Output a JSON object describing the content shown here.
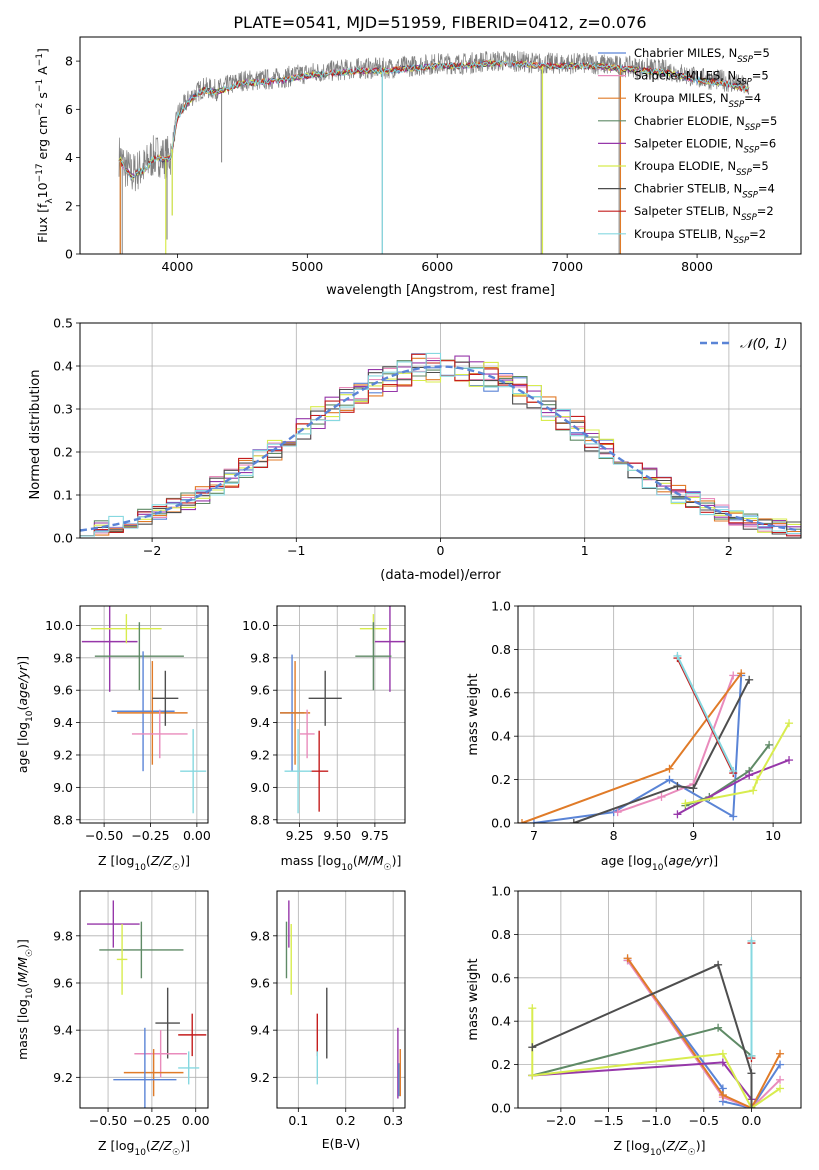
{
  "figure_title": "PLATE=0541, MJD=51959, FIBERID=0412, z=0.076",
  "colors": {
    "Chabrier MILES": "#5a84d6",
    "Salpeter MILES": "#e98bbc",
    "Kroupa MILES": "#e07b28",
    "Chabrier ELODIE": "#5f8a66",
    "Salpeter ELODIE": "#9637a9",
    "Kroupa ELODIE": "#d8ec4e",
    "Chabrier STELIB": "#4e4e4e",
    "Salpeter STELIB": "#c41e1e",
    "Kroupa STELIB": "#86d8e0"
  },
  "chart_data": [
    {
      "id": "spectrum",
      "type": "line",
      "title": "PLATE=0541, MJD=51959, FIBERID=0412, z=0.076",
      "xlabel": "wavelength [Angstrom, rest frame]",
      "ylabel": "Flux [fλ10⁻¹⁷ erg cm⁻² s⁻¹ A⁻¹]",
      "xlim": [
        3250,
        8800
      ],
      "ylim": [
        0,
        9
      ],
      "xticks": [
        4000,
        5000,
        6000,
        7000,
        8000
      ],
      "yticks": [
        0,
        2,
        4,
        6,
        8
      ],
      "grid": false,
      "legend_position": "right",
      "legend": [
        "Chabrier MILES, N_SSP=5",
        "Salpeter MILES, N_SSP=5",
        "Kroupa MILES, N_SSP=4",
        "Chabrier ELODIE, N_SSP=5",
        "Salpeter ELODIE, N_SSP=6",
        "Kroupa ELODIE, N_SSP=5",
        "Chabrier STELIB, N_SSP=4",
        "Salpeter STELIB, N_SSP=2",
        "Kroupa STELIB, N_SSP=2"
      ],
      "legend_display": [
        {
          "pre": "Chabrier MILES, N",
          "sub": "SSP",
          "post": "=5",
          "model": "Chabrier MILES"
        },
        {
          "pre": "Salpeter MILES, N",
          "sub": "SSP",
          "post": "=5",
          "model": "Salpeter MILES"
        },
        {
          "pre": "Kroupa MILES, N",
          "sub": "SSP",
          "post": "=4",
          "model": "Kroupa MILES"
        },
        {
          "pre": "Chabrier ELODIE, N",
          "sub": "SSP",
          "post": "=5",
          "model": "Chabrier ELODIE"
        },
        {
          "pre": "Salpeter ELODIE, N",
          "sub": "SSP",
          "post": "=6",
          "model": "Salpeter ELODIE"
        },
        {
          "pre": "Kroupa ELODIE, N",
          "sub": "SSP",
          "post": "=5",
          "model": "Kroupa ELODIE"
        },
        {
          "pre": "Chabrier STELIB, N",
          "sub": "SSP",
          "post": "=4",
          "model": "Chabrier STELIB"
        },
        {
          "pre": "Salpeter STELIB, N",
          "sub": "SSP",
          "post": "=2",
          "model": "Salpeter STELIB"
        },
        {
          "pre": "Kroupa STELIB, N",
          "sub": "SSP",
          "post": "=2",
          "model": "Kroupa STELIB"
        }
      ],
      "series": [
        {
          "name": "Observed spectrum",
          "color": "#808080",
          "x": [
            3550,
            3600,
            3650,
            3700,
            3750,
            3800,
            3850,
            3900,
            3950,
            4000,
            4100,
            4200,
            4300,
            4400,
            4500,
            4600,
            4800,
            5000,
            5200,
            5400,
            5600,
            5800,
            6000,
            6200,
            6400,
            6600,
            6800,
            7000,
            7200,
            7400,
            7600,
            7800,
            8000,
            8200,
            8400
          ],
          "y": [
            4.1,
            3.6,
            3.3,
            3.5,
            3.6,
            4.0,
            4.1,
            4.0,
            4.1,
            5.8,
            6.5,
            6.9,
            6.8,
            7.0,
            7.2,
            7.2,
            7.3,
            7.5,
            7.6,
            7.7,
            7.7,
            7.8,
            7.9,
            7.9,
            8.0,
            8.0,
            7.9,
            7.9,
            7.9,
            7.8,
            7.7,
            7.6,
            7.3,
            7.2,
            6.9
          ]
        },
        {
          "name": "Model fits",
          "color": "#86d8e0",
          "x": [
            3550,
            3600,
            3650,
            3700,
            3750,
            3800,
            3850,
            3900,
            3950,
            4000,
            4100,
            4200,
            4300,
            4400,
            4500,
            4600,
            4800,
            5000,
            5200,
            5400,
            5600,
            5800,
            6000,
            6200,
            6400,
            6600,
            6800,
            7000,
            7200,
            7400,
            7600,
            7800,
            8000,
            8200,
            8400
          ],
          "y": [
            4.0,
            3.5,
            3.2,
            3.4,
            3.5,
            3.9,
            4.0,
            3.9,
            4.0,
            5.7,
            6.4,
            6.8,
            6.7,
            6.9,
            7.1,
            7.1,
            7.2,
            7.4,
            7.5,
            7.6,
            7.6,
            7.7,
            7.8,
            7.8,
            7.9,
            7.9,
            7.8,
            7.8,
            7.8,
            7.7,
            7.6,
            7.5,
            7.2,
            7.1,
            6.8
          ]
        }
      ]
    },
    {
      "id": "residuals",
      "type": "histogram",
      "xlabel": "(data-model)/error",
      "ylabel": "Normed distribution",
      "xlim": [
        -2.5,
        2.5
      ],
      "ylim": [
        0,
        0.5
      ],
      "xticks": [
        -2,
        -1,
        0,
        1,
        2
      ],
      "yticks": [
        0.0,
        0.1,
        0.2,
        0.3,
        0.4,
        0.5
      ],
      "grid": true,
      "legend_position": "top-right",
      "legend": [
        "𝒩(0, 1)"
      ],
      "reference_curve": {
        "name": "𝒩(0, 1)",
        "mean": 0,
        "sigma": 1,
        "style": "dashed",
        "color": "#5a84d6"
      },
      "bin_width": 0.1,
      "bin_start": -2.5
    },
    {
      "id": "age-vs-Z",
      "type": "scatter",
      "xlabel": "Z [log10(Z/Z☉)]",
      "ylabel": "age [log10(age/yr)]",
      "xlim": [
        -0.63,
        0.06
      ],
      "ylim": [
        8.78,
        10.12
      ],
      "xticks": [
        -0.5,
        -0.25,
        0.0
      ],
      "yticks": [
        8.8,
        9.0,
        9.2,
        9.4,
        9.6,
        9.8,
        10.0
      ],
      "grid": true,
      "points": [
        {
          "model": "Salpeter ELODIE",
          "x": -0.47,
          "xerr": 0.15,
          "y": 9.9,
          "yerr": 0.31
        },
        {
          "model": "Kroupa ELODIE",
          "x": -0.38,
          "xerr": 0.19,
          "y": 9.98,
          "yerr": 0.09
        },
        {
          "model": "Chabrier ELODIE",
          "x": -0.31,
          "xerr": 0.24,
          "y": 9.81,
          "yerr": 0.21
        },
        {
          "model": "Chabrier MILES",
          "x": -0.29,
          "xerr": 0.17,
          "y": 9.47,
          "yerr": 0.37
        },
        {
          "model": "Kroupa MILES",
          "x": -0.24,
          "xerr": 0.19,
          "y": 9.46,
          "yerr": 0.32
        },
        {
          "model": "Chabrier STELIB",
          "x": -0.17,
          "xerr": 0.07,
          "y": 9.55,
          "yerr": 0.17
        },
        {
          "model": "Salpeter MILES",
          "x": -0.2,
          "xerr": 0.15,
          "y": 9.33,
          "yerr": 0.15
        },
        {
          "model": "Kroupa STELIB",
          "x": -0.02,
          "xerr": 0.07,
          "y": 9.1,
          "yerr": 0.26
        }
      ]
    },
    {
      "id": "age-vs-mass",
      "type": "scatter",
      "xlabel": "mass [log10(M/M☉)]",
      "ylabel": "",
      "xlim": [
        9.1,
        9.95
      ],
      "ylim": [
        8.78,
        10.12
      ],
      "xticks": [
        9.25,
        9.5,
        9.75
      ],
      "yticks": [
        8.8,
        9.0,
        9.2,
        9.4,
        9.6,
        9.8,
        10.0
      ],
      "grid": true,
      "points": [
        {
          "model": "Kroupa ELODIE",
          "x": 9.74,
          "xerr": 0.09,
          "y": 9.98,
          "yerr": 0.09
        },
        {
          "model": "Salpeter ELODIE",
          "x": 9.85,
          "xerr": 0.1,
          "y": 9.9,
          "yerr": 0.31
        },
        {
          "model": "Chabrier ELODIE",
          "x": 9.74,
          "xerr": 0.12,
          "y": 9.81,
          "yerr": 0.21
        },
        {
          "model": "Chabrier STELIB",
          "x": 9.42,
          "xerr": 0.11,
          "y": 9.55,
          "yerr": 0.17
        },
        {
          "model": "Chabrier MILES",
          "x": 9.2,
          "xerr": 0.08,
          "y": 9.46,
          "yerr": 0.36
        },
        {
          "model": "Kroupa MILES",
          "x": 9.22,
          "xerr": 0.1,
          "y": 9.46,
          "yerr": 0.32
        },
        {
          "model": "Salpeter MILES",
          "x": 9.3,
          "xerr": 0.05,
          "y": 9.33,
          "yerr": 0.15
        },
        {
          "model": "Salpeter STELIB",
          "x": 9.38,
          "xerr": 0.06,
          "y": 9.1,
          "yerr": 0.25
        },
        {
          "model": "Kroupa STELIB",
          "x": 9.24,
          "xerr": 0.09,
          "y": 9.1,
          "yerr": 0.26
        }
      ]
    },
    {
      "id": "weight-vs-age",
      "type": "line",
      "xlabel": "age [log10(age/yr)]",
      "ylabel": "mass weight",
      "xlim": [
        6.8,
        10.35
      ],
      "ylim": [
        0,
        1.0
      ],
      "xticks": [
        7,
        8,
        9,
        10
      ],
      "yticks": [
        0.0,
        0.2,
        0.4,
        0.6,
        0.8,
        1.0
      ],
      "grid": true,
      "series": [
        {
          "name": "Chabrier MILES",
          "x": [
            7.0,
            8.0,
            8.7,
            9.5,
            9.6
          ],
          "y": [
            0.0,
            0.05,
            0.2,
            0.03,
            0.68
          ]
        },
        {
          "name": "Salpeter MILES",
          "x": [
            8.05,
            8.6,
            9.0,
            9.5
          ],
          "y": [
            0.05,
            0.12,
            0.18,
            0.68
          ]
        },
        {
          "name": "Kroupa MILES",
          "x": [
            6.85,
            8.7,
            9.6
          ],
          "y": [
            0.0,
            0.25,
            0.69
          ]
        },
        {
          "name": "Chabrier ELODIE",
          "x": [
            8.9,
            9.2,
            9.7,
            9.95
          ],
          "y": [
            0.08,
            0.12,
            0.24,
            0.36
          ]
        },
        {
          "name": "Salpeter ELODIE",
          "x": [
            8.8,
            9.7,
            10.2
          ],
          "y": [
            0.04,
            0.22,
            0.29
          ]
        },
        {
          "name": "Kroupa ELODIE",
          "x": [
            8.9,
            9.75,
            9.8,
            10.2
          ],
          "y": [
            0.09,
            0.15,
            0.2,
            0.46
          ]
        },
        {
          "name": "Chabrier STELIB",
          "x": [
            7.5,
            8.8,
            9.0,
            9.7
          ],
          "y": [
            0.0,
            0.17,
            0.16,
            0.66
          ]
        },
        {
          "name": "Salpeter STELIB",
          "x": [
            8.8,
            9.5
          ],
          "y": [
            0.76,
            0.23
          ]
        },
        {
          "name": "Kroupa STELIB",
          "x": [
            8.8,
            9.5
          ],
          "y": [
            0.77,
            0.24
          ]
        }
      ]
    },
    {
      "id": "mass-vs-Z",
      "type": "scatter",
      "xlabel": "Z [log10(Z/Z☉)]",
      "ylabel": "mass [log10(M/M☉)]",
      "xlim": [
        -0.66,
        0.07
      ],
      "ylim": [
        9.07,
        9.99
      ],
      "xticks": [
        -0.5,
        -0.25,
        0.0
      ],
      "yticks": [
        9.2,
        9.4,
        9.6,
        9.8
      ],
      "grid": true,
      "points": [
        {
          "model": "Salpeter ELODIE",
          "x": -0.47,
          "xerr": 0.15,
          "y": 9.85,
          "yerr": 0.1
        },
        {
          "model": "Chabrier ELODIE",
          "x": -0.31,
          "xerr": 0.24,
          "y": 9.74,
          "yerr": 0.12
        },
        {
          "model": "Kroupa ELODIE",
          "x": -0.42,
          "xerr": 0.03,
          "y": 9.7,
          "yerr": 0.15
        },
        {
          "model": "Chabrier STELIB",
          "x": -0.16,
          "xerr": 0.07,
          "y": 9.43,
          "yerr": 0.15
        },
        {
          "model": "Salpeter STELIB",
          "x": -0.02,
          "xerr": 0.08,
          "y": 9.38,
          "yerr": 0.09
        },
        {
          "model": "Salpeter MILES",
          "x": -0.2,
          "xerr": 0.15,
          "y": 9.3,
          "yerr": 0.1
        },
        {
          "model": "Kroupa STELIB",
          "x": -0.04,
          "xerr": 0.06,
          "y": 9.24,
          "yerr": 0.07
        },
        {
          "model": "Kroupa MILES",
          "x": -0.24,
          "xerr": 0.17,
          "y": 9.22,
          "yerr": 0.1
        },
        {
          "model": "Chabrier MILES",
          "x": -0.29,
          "xerr": 0.18,
          "y": 9.19,
          "yerr": 0.22
        }
      ]
    },
    {
      "id": "mass-vs-EBV",
      "type": "scatter",
      "xlabel": "E(B-V)",
      "ylabel": "",
      "xlim": [
        0.055,
        0.325
      ],
      "ylim": [
        9.07,
        9.99
      ],
      "xticks": [
        0.1,
        0.2,
        0.3
      ],
      "yticks": [
        9.2,
        9.4,
        9.6,
        9.8
      ],
      "grid": true,
      "points": [
        {
          "model": "Salpeter ELODIE",
          "x": 0.08,
          "xerr": 0.0,
          "y": 9.85,
          "yerr": 0.1
        },
        {
          "model": "Chabrier ELODIE",
          "x": 0.075,
          "xerr": 0.0,
          "y": 9.74,
          "yerr": 0.12
        },
        {
          "model": "Kroupa ELODIE",
          "x": 0.085,
          "xerr": 0.0,
          "y": 9.7,
          "yerr": 0.15
        },
        {
          "model": "Chabrier STELIB",
          "x": 0.16,
          "xerr": 0.0,
          "y": 9.43,
          "yerr": 0.15
        },
        {
          "model": "Salpeter STELIB",
          "x": 0.14,
          "xerr": 0.0,
          "y": 9.38,
          "yerr": 0.09
        },
        {
          "model": "Kroupa STELIB",
          "x": 0.14,
          "xerr": 0.0,
          "y": 9.24,
          "yerr": 0.07
        },
        {
          "model": "Salpeter ELODIE",
          "x": 0.31,
          "xerr": 0.0,
          "y": 9.26,
          "yerr": 0.15
        },
        {
          "model": "Kroupa MILES",
          "x": 0.315,
          "xerr": 0.0,
          "y": 9.22,
          "yerr": 0.1
        },
        {
          "model": "Chabrier MILES",
          "x": 0.312,
          "xerr": 0.0,
          "y": 9.19,
          "yerr": 0.07
        }
      ]
    },
    {
      "id": "weight-vs-Z",
      "type": "line",
      "xlabel": "Z [log10(Z/Z☉)]",
      "ylabel": "mass weight",
      "xlim": [
        -2.45,
        0.52
      ],
      "ylim": [
        0,
        1.0
      ],
      "xticks": [
        -2.0,
        -1.5,
        -1.0,
        -0.5,
        0.0
      ],
      "yticks": [
        0.0,
        0.2,
        0.4,
        0.6,
        0.8,
        1.0
      ],
      "grid": true,
      "series": [
        {
          "name": "Chabrier MILES",
          "x": [
            -1.3,
            -0.3,
            -0.3,
            0.0,
            0.3
          ],
          "y": [
            0.68,
            0.09,
            0.03,
            0.0,
            0.2
          ]
        },
        {
          "name": "Salpeter MILES",
          "x": [
            -1.3,
            -0.3,
            0.0,
            0.3
          ],
          "y": [
            0.68,
            0.05,
            0.0,
            0.13
          ]
        },
        {
          "name": "Kroupa MILES",
          "x": [
            -1.3,
            -0.3,
            0.0,
            0.3
          ],
          "y": [
            0.69,
            0.06,
            0.0,
            0.25
          ]
        },
        {
          "name": "Chabrier ELODIE",
          "x": [
            -2.3,
            -0.35,
            0.0
          ],
          "y": [
            0.15,
            0.37,
            0.24
          ]
        },
        {
          "name": "Salpeter ELODIE",
          "x": [
            -2.3,
            -0.3,
            0.0
          ],
          "y": [
            0.15,
            0.21,
            0.04
          ]
        },
        {
          "name": "Kroupa ELODIE",
          "x": [
            -2.3,
            -2.3,
            -0.3,
            0.0,
            0.3
          ],
          "y": [
            0.46,
            0.15,
            0.25,
            0.0,
            0.09
          ]
        },
        {
          "name": "Chabrier STELIB",
          "x": [
            -2.3,
            -0.35,
            0.0,
            0.0
          ],
          "y": [
            0.28,
            0.66,
            0.16,
            0.0
          ]
        },
        {
          "name": "Salpeter STELIB",
          "x": [
            0.0,
            0.0
          ],
          "y": [
            0.76,
            0.23
          ]
        },
        {
          "name": "Kroupa STELIB",
          "x": [
            0.0,
            0.0
          ],
          "y": [
            0.77,
            0.24
          ]
        }
      ]
    }
  ]
}
